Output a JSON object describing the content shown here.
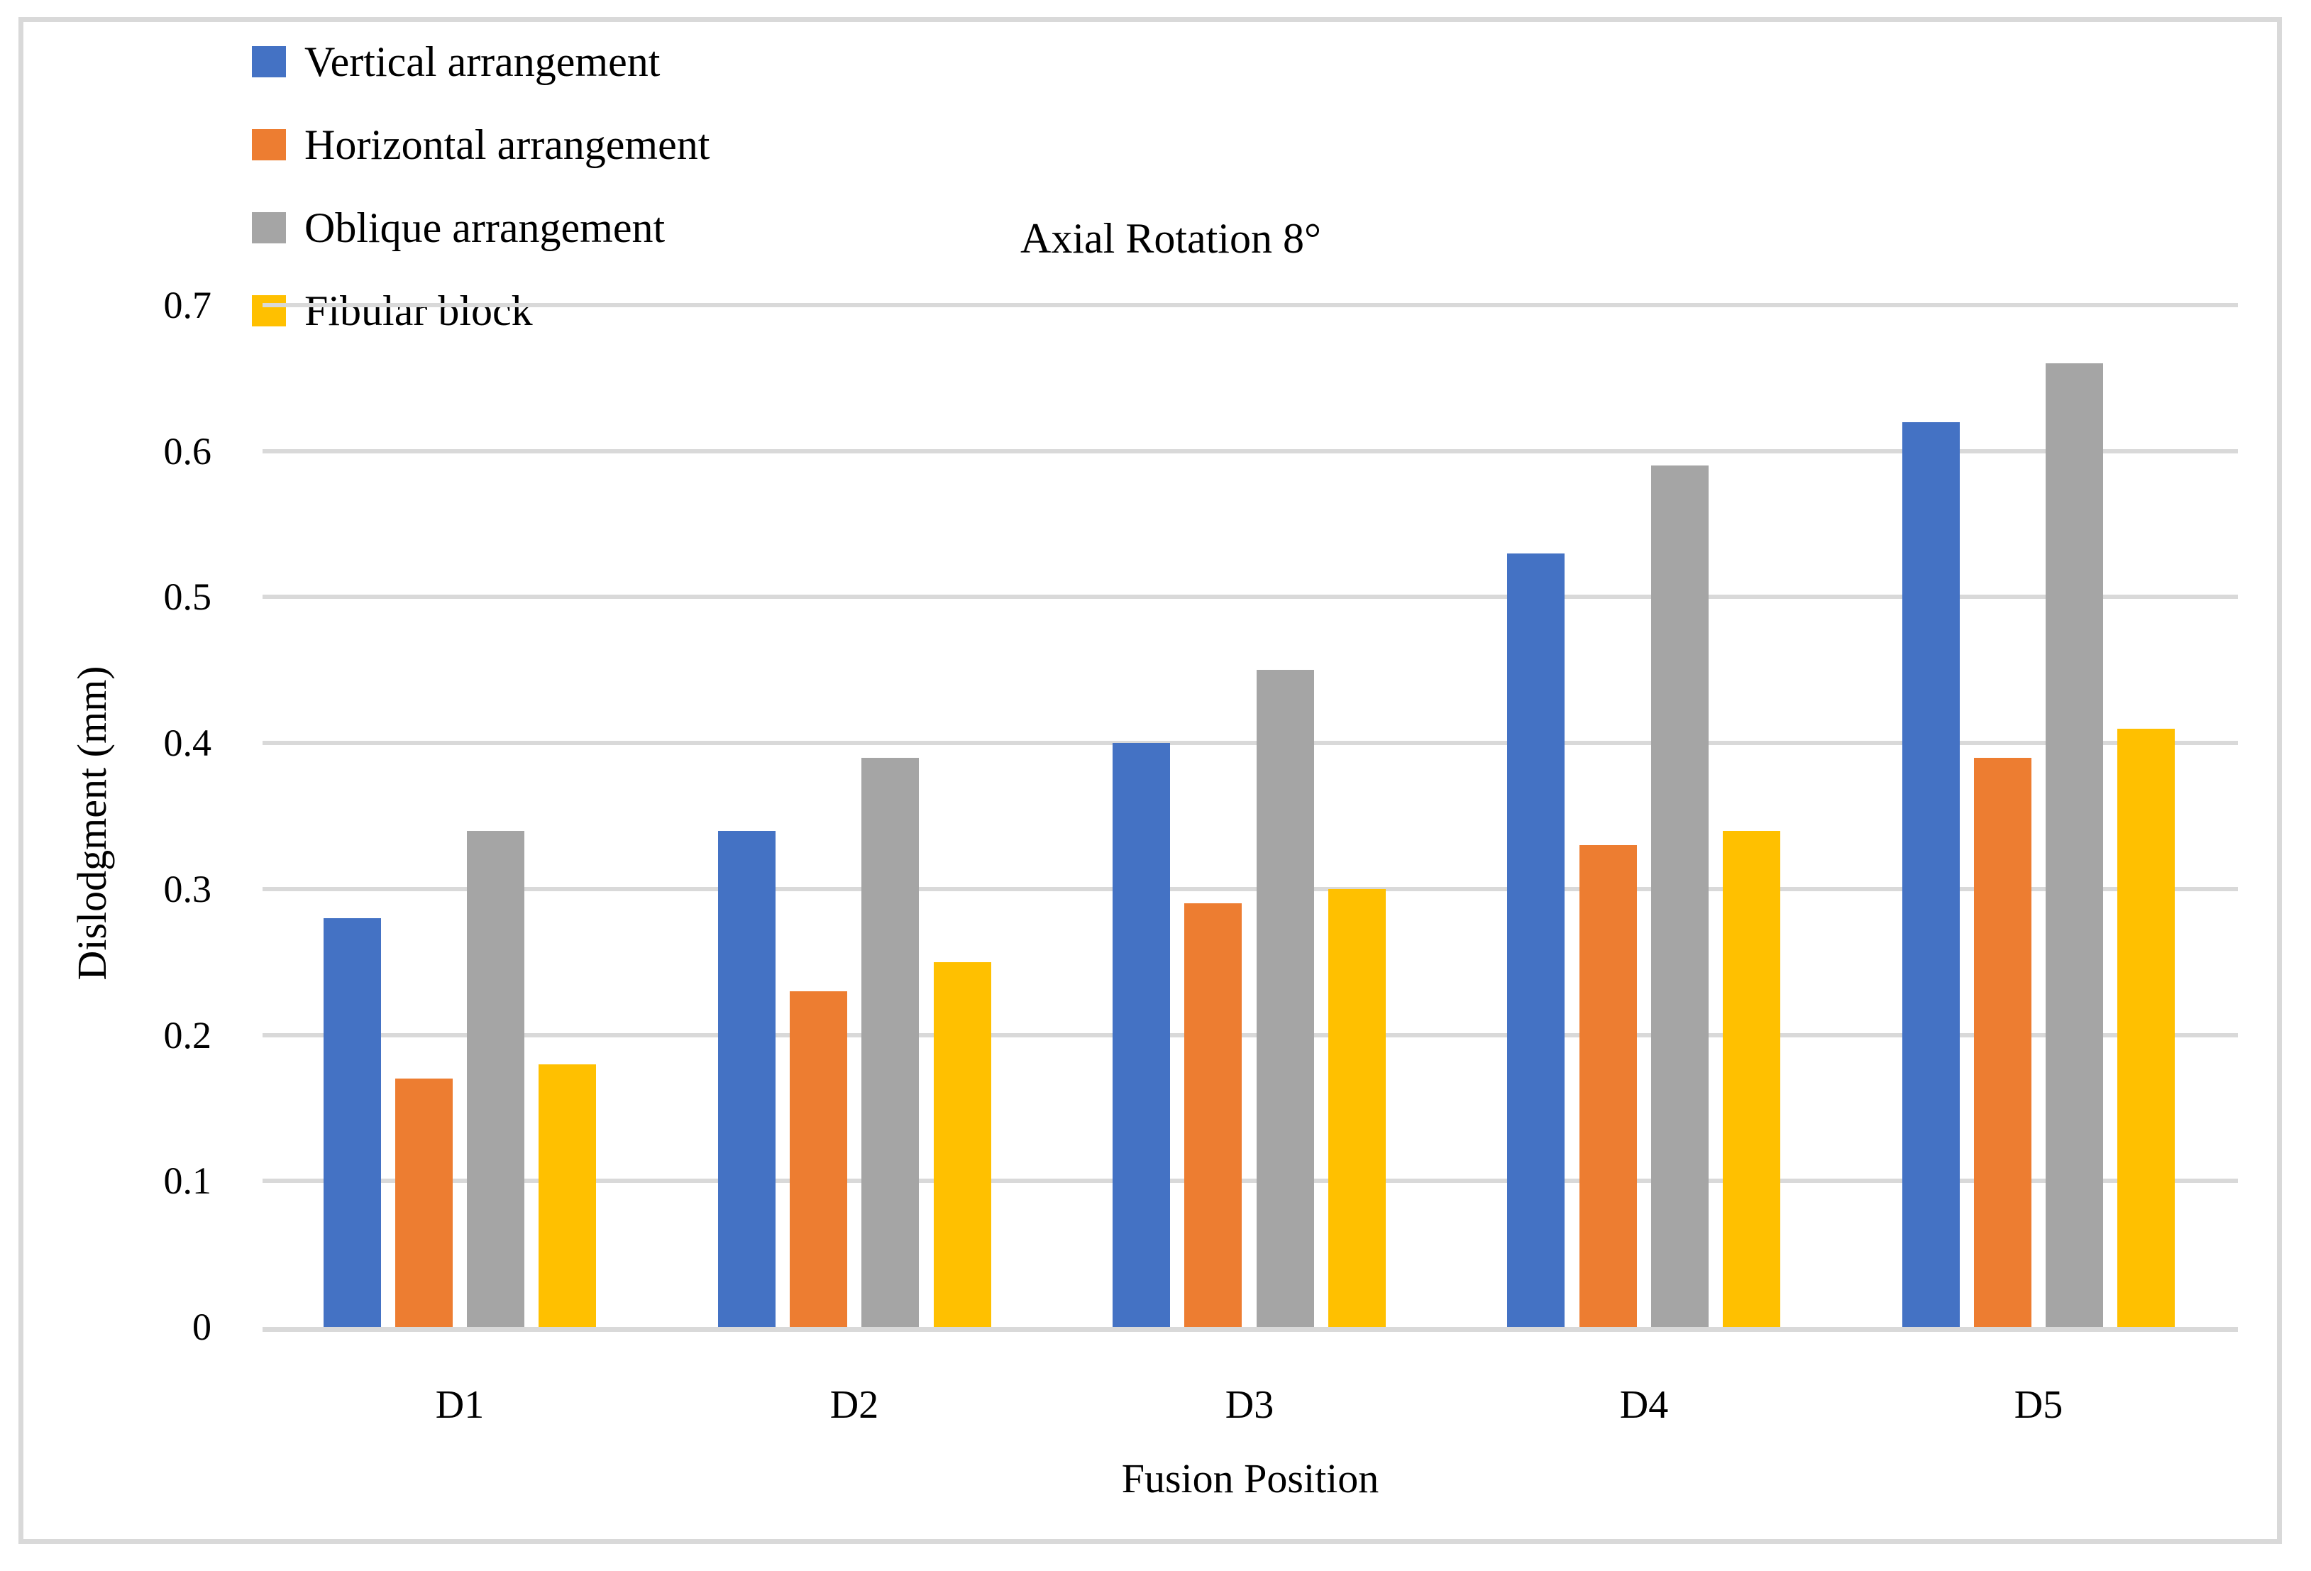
{
  "figure": {
    "title": "Axial Rotation 8°",
    "x_axis_title": "Fusion Position",
    "y_axis_title": "Dislodgment (mm)"
  },
  "legend": {
    "items": [
      {
        "label": "Vertical arrangement",
        "color": "#4472C4"
      },
      {
        "label": "Horizontal arrangement",
        "color": "#ED7D31"
      },
      {
        "label": "Oblique arrangement",
        "color": "#A5A5A5"
      },
      {
        "label": "Fibular block",
        "color": "#FFC000"
      }
    ]
  },
  "chart_data": {
    "type": "bar",
    "title": "Axial Rotation 8°",
    "xlabel": "Fusion Position",
    "ylabel": "Dislodgment (mm)",
    "categories": [
      "D1",
      "D2",
      "D3",
      "D4",
      "D5"
    ],
    "series": [
      {
        "name": "Vertical arrangement",
        "color": "#4472C4",
        "values": [
          0.28,
          0.34,
          0.4,
          0.53,
          0.62
        ]
      },
      {
        "name": "Horizontal arrangement",
        "color": "#ED7D31",
        "values": [
          0.17,
          0.23,
          0.29,
          0.33,
          0.39
        ]
      },
      {
        "name": "Oblique arrangement",
        "color": "#A5A5A5",
        "values": [
          0.34,
          0.39,
          0.45,
          0.59,
          0.66
        ]
      },
      {
        "name": "Fibular block",
        "color": "#FFC000",
        "values": [
          0.18,
          0.25,
          0.3,
          0.34,
          0.41
        ]
      }
    ],
    "ylim": [
      0,
      0.7
    ],
    "y_ticks": [
      0,
      0.1,
      0.2,
      0.3,
      0.4,
      0.5,
      0.6,
      0.7
    ],
    "grid": "horizontal",
    "gridline_color": "#D9D9D9",
    "legend_position": "top-left"
  }
}
